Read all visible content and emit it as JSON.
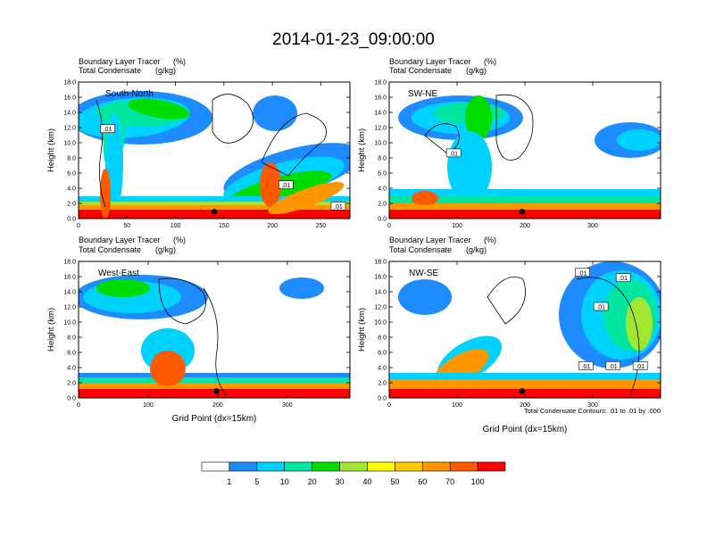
{
  "figure": {
    "title": "2014-01-23_09:00:00",
    "footnote": "Total Condensate Contours: .01 to .01 by .000"
  },
  "colorbar": {
    "labels": [
      "1",
      "5",
      "10",
      "20",
      "30",
      "40",
      "50",
      "60",
      "70",
      "100"
    ],
    "colors": [
      "#ffffff",
      "#1e8cff",
      "#00d2ff",
      "#00e6a0",
      "#00dc00",
      "#a0e632",
      "#ffff00",
      "#ffc800",
      "#ff9600",
      "#ff5a00",
      "#ff0000"
    ]
  },
  "chart_data": [
    {
      "type": "heatmap",
      "panel": "South-North",
      "title_left_1": "Boundary Layer Tracer",
      "title_right_1": "(%)",
      "title_left_2": "Total Condensate",
      "title_right_2": "(g/kg)",
      "ylabel": "Height (km)",
      "xlabel": "",
      "xlim": [
        0,
        280
      ],
      "ylim": [
        0,
        18
      ],
      "xticks": [
        "0",
        "50",
        "100",
        "150",
        "200",
        "250"
      ],
      "xtick_values": [
        0,
        50,
        100,
        150,
        200,
        250
      ],
      "yticks": [
        "0.0",
        "2.0",
        "4.0",
        "6.0",
        "8.0",
        "10.0",
        "12.0",
        "14.0",
        "16.0",
        "18.0"
      ],
      "contour_labels": [
        {
          "text": ".01",
          "x": 30,
          "y": 11.8
        },
        {
          "text": ".01",
          "x": 214,
          "y": 4.4
        },
        {
          "text": ".01",
          "x": 268,
          "y": 1.6
        }
      ],
      "marker": {
        "x": 140,
        "y": 0.9
      }
    },
    {
      "type": "heatmap",
      "panel": "SW-NE",
      "title_left_1": "Boundary Layer Tracer",
      "title_right_1": "(%)",
      "title_left_2": "Total Condensate",
      "title_right_2": "(g/kg)",
      "ylabel": "Height (km)",
      "xlabel": "",
      "xlim": [
        0,
        400
      ],
      "ylim": [
        0,
        18
      ],
      "xticks": [
        "0",
        "100",
        "200",
        "300"
      ],
      "xtick_values": [
        0,
        100,
        200,
        300
      ],
      "yticks": [
        "0.0",
        "2.0",
        "4.0",
        "6.0",
        "8.0",
        "10.0",
        "12.0",
        "14.0",
        "16.0",
        "18.0"
      ],
      "contour_labels": [
        {
          "text": ".01",
          "x": 95,
          "y": 8.6
        }
      ],
      "marker": {
        "x": 196,
        "y": 0.9
      }
    },
    {
      "type": "heatmap",
      "panel": "West-East",
      "title_left_1": "Boundary Layer Tracer",
      "title_right_1": "(%)",
      "title_left_2": "Total Condensate",
      "title_right_2": "(g/kg)",
      "ylabel": "Height (km)",
      "xlabel": "Grid Point (dx=15km)",
      "xlim": [
        0,
        390
      ],
      "ylim": [
        0,
        18
      ],
      "xticks": [
        "0",
        "100",
        "200",
        "300"
      ],
      "xtick_values": [
        0,
        100,
        200,
        300
      ],
      "yticks": [
        "0.0",
        "2.0",
        "4.0",
        "6.0",
        "8.0",
        "10.0",
        "12.0",
        "14.0",
        "16.0",
        "18.0"
      ],
      "contour_labels": [],
      "marker": {
        "x": 198,
        "y": 0.9
      }
    },
    {
      "type": "heatmap",
      "panel": "NW-SE",
      "title_left_1": "Boundary Layer Tracer",
      "title_right_1": "(%)",
      "title_left_2": "Total Condensate",
      "title_right_2": "(g/kg)",
      "ylabel": "Height (km)",
      "xlabel": "Grid Point (dx=15km)",
      "xlim": [
        0,
        400
      ],
      "ylim": [
        0,
        18
      ],
      "xticks": [
        "0",
        "100",
        "200",
        "300"
      ],
      "xtick_values": [
        0,
        100,
        200,
        300
      ],
      "yticks": [
        "0.0",
        "2.0",
        "4.0",
        "6.0",
        "8.0",
        "10.0",
        "12.0",
        "14.0",
        "16.0",
        "18.0"
      ],
      "contour_labels": [
        {
          "text": ".01",
          "x": 285,
          "y": 16.5
        },
        {
          "text": ".01",
          "x": 345,
          "y": 15.8
        },
        {
          "text": ".01",
          "x": 312,
          "y": 12.0
        },
        {
          "text": ".01",
          "x": 290,
          "y": 4.2
        },
        {
          "text": ".01",
          "x": 330,
          "y": 4.2
        },
        {
          "text": ".01",
          "x": 370,
          "y": 4.2
        }
      ],
      "marker": {
        "x": 196,
        "y": 0.9
      }
    }
  ]
}
